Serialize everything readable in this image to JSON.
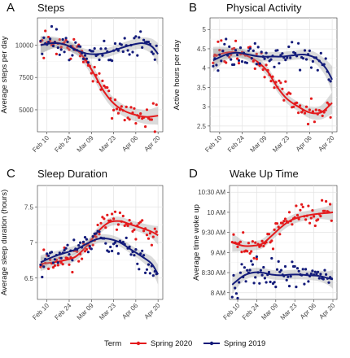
{
  "legend": {
    "title": "Term",
    "entries": [
      {
        "label": "Spring 2020",
        "color": "#E41A1C"
      },
      {
        "label": "Spring 2019",
        "color": "#131B7A"
      }
    ]
  },
  "chart_data": [
    {
      "letter": "A",
      "type": "scatter",
      "title": "Steps",
      "ylabel": "Average steps per day",
      "xticks": [
        "Feb 10",
        "Feb 24",
        "Mar 09",
        "Mar 23",
        "Apr 06",
        "Apr 20"
      ],
      "xlim": [
        "2020-02-04",
        "2020-04-23"
      ],
      "yticks": [
        5000,
        7500,
        10000
      ],
      "ytick_labels": [
        "5000",
        "7500",
        "10000"
      ],
      "ylim": [
        3300,
        12100
      ],
      "series": [
        {
          "name": "Spring 2020",
          "color": "#E41A1C",
          "trend": [
            [
              "2020-02-06",
              10000
            ],
            [
              "2020-02-14",
              10200
            ],
            [
              "2020-02-21",
              10050
            ],
            [
              "2020-02-28",
              9700
            ],
            [
              "2020-03-05",
              8900
            ],
            [
              "2020-03-11",
              7700
            ],
            [
              "2020-03-17",
              6400
            ],
            [
              "2020-03-23",
              5500
            ],
            [
              "2020-03-30",
              4900
            ],
            [
              "2020-04-06",
              4600
            ],
            [
              "2020-04-13",
              4450
            ],
            [
              "2020-04-20",
              4550
            ]
          ],
          "band": [
            700,
            450,
            400,
            400,
            450,
            450,
            450,
            450,
            450,
            500,
            550,
            700
          ]
        },
        {
          "name": "Spring 2019",
          "color": "#131B7A",
          "trend": [
            [
              "2020-02-06",
              10000
            ],
            [
              "2020-02-14",
              10150
            ],
            [
              "2020-02-21",
              10050
            ],
            [
              "2020-02-28",
              9650
            ],
            [
              "2020-03-06",
              9350
            ],
            [
              "2020-03-13",
              9300
            ],
            [
              "2020-03-20",
              9450
            ],
            [
              "2020-03-27",
              9750
            ],
            [
              "2020-04-03",
              10000
            ],
            [
              "2020-04-10",
              10150
            ],
            [
              "2020-04-16",
              9900
            ],
            [
              "2020-04-20",
              9300
            ]
          ],
          "band": [
            650,
            400,
            350,
            350,
            350,
            350,
            350,
            350,
            400,
            450,
            600,
            850
          ]
        }
      ]
    },
    {
      "letter": "B",
      "type": "scatter",
      "title": "Physical Activity",
      "ylabel": "Active hours per day",
      "xticks": [
        "Feb 10",
        "Feb 24",
        "Mar 09",
        "Mar 23",
        "Apr 06",
        "Apr 20"
      ],
      "xlim": [
        "2020-02-04",
        "2020-04-23"
      ],
      "yticks": [
        2.5,
        3,
        3.5,
        4,
        4.5,
        5
      ],
      "ytick_labels": [
        "2.5",
        "3",
        "3.5",
        "4",
        "4.5",
        "5"
      ],
      "ylim": [
        2.35,
        5.3
      ],
      "series": [
        {
          "name": "Spring 2020",
          "color": "#E41A1C",
          "trend": [
            [
              "2020-02-06",
              4.3
            ],
            [
              "2020-02-14",
              4.4
            ],
            [
              "2020-02-21",
              4.4
            ],
            [
              "2020-02-28",
              4.3
            ],
            [
              "2020-03-05",
              4.15
            ],
            [
              "2020-03-11",
              3.9
            ],
            [
              "2020-03-17",
              3.5
            ],
            [
              "2020-03-23",
              3.2
            ],
            [
              "2020-03-30",
              3.0
            ],
            [
              "2020-04-06",
              2.85
            ],
            [
              "2020-04-13",
              2.85
            ],
            [
              "2020-04-20",
              3.1
            ]
          ],
          "band": [
            0.25,
            0.15,
            0.12,
            0.12,
            0.12,
            0.12,
            0.12,
            0.12,
            0.12,
            0.15,
            0.18,
            0.28
          ]
        },
        {
          "name": "Spring 2019",
          "color": "#131B7A",
          "trend": [
            [
              "2020-02-06",
              4.2
            ],
            [
              "2020-02-14",
              4.35
            ],
            [
              "2020-02-21",
              4.4
            ],
            [
              "2020-02-28",
              4.35
            ],
            [
              "2020-03-06",
              4.3
            ],
            [
              "2020-03-13",
              4.3
            ],
            [
              "2020-03-20",
              4.3
            ],
            [
              "2020-03-27",
              4.33
            ],
            [
              "2020-04-03",
              4.35
            ],
            [
              "2020-04-10",
              4.25
            ],
            [
              "2020-04-16",
              4.0
            ],
            [
              "2020-04-20",
              3.7
            ]
          ],
          "band": [
            0.3,
            0.15,
            0.12,
            0.12,
            0.12,
            0.12,
            0.12,
            0.12,
            0.13,
            0.15,
            0.22,
            0.35
          ]
        }
      ]
    },
    {
      "letter": "C",
      "type": "scatter",
      "title": "Sleep Duration",
      "ylabel": "Average sleep duration (hours)",
      "xticks": [
        "Feb 10",
        "Feb 24",
        "Mar 09",
        "Mar 23",
        "Apr 06",
        "Apr 20"
      ],
      "xlim": [
        "2020-02-04",
        "2020-04-23"
      ],
      "yticks": [
        6.5,
        7,
        7.5
      ],
      "ytick_labels": [
        "6.5",
        "7",
        "7.5"
      ],
      "ylim": [
        6.2,
        7.8
      ],
      "series": [
        {
          "name": "Spring 2020",
          "color": "#E41A1C",
          "trend": [
            [
              "2020-02-06",
              6.7
            ],
            [
              "2020-02-14",
              6.72
            ],
            [
              "2020-02-21",
              6.75
            ],
            [
              "2020-02-28",
              6.8
            ],
            [
              "2020-03-06",
              6.95
            ],
            [
              "2020-03-13",
              7.15
            ],
            [
              "2020-03-20",
              7.28
            ],
            [
              "2020-03-27",
              7.3
            ],
            [
              "2020-04-03",
              7.25
            ],
            [
              "2020-04-10",
              7.2
            ],
            [
              "2020-04-16",
              7.15
            ],
            [
              "2020-04-20",
              7.1
            ]
          ],
          "band": [
            0.1,
            0.07,
            0.06,
            0.06,
            0.06,
            0.06,
            0.06,
            0.06,
            0.06,
            0.07,
            0.09,
            0.13
          ]
        },
        {
          "name": "Spring 2019",
          "color": "#131B7A",
          "trend": [
            [
              "2020-02-06",
              6.72
            ],
            [
              "2020-02-14",
              6.8
            ],
            [
              "2020-02-21",
              6.85
            ],
            [
              "2020-02-28",
              6.9
            ],
            [
              "2020-03-06",
              6.98
            ],
            [
              "2020-03-13",
              7.05
            ],
            [
              "2020-03-20",
              7.05
            ],
            [
              "2020-03-27",
              7.0
            ],
            [
              "2020-04-03",
              6.9
            ],
            [
              "2020-04-10",
              6.8
            ],
            [
              "2020-04-16",
              6.7
            ],
            [
              "2020-04-20",
              6.55
            ]
          ],
          "band": [
            0.1,
            0.07,
            0.06,
            0.06,
            0.06,
            0.06,
            0.06,
            0.06,
            0.06,
            0.07,
            0.1,
            0.14
          ]
        }
      ]
    },
    {
      "letter": "D",
      "type": "scatter",
      "title": "Wake Up Time",
      "ylabel": "Average time woke up",
      "xticks": [
        "Feb 10",
        "Feb 24",
        "Mar 09",
        "Mar 23",
        "Apr 06",
        "Apr 20"
      ],
      "xlim": [
        "2020-02-04",
        "2020-04-23"
      ],
      "yticks": [
        480,
        510,
        540,
        570,
        600,
        630
      ],
      "ytick_labels": [
        "8 AM",
        "8:30 AM",
        "9 AM",
        "9:30 AM",
        "10 AM",
        "10:30 AM"
      ],
      "ylim": [
        470,
        640
      ],
      "series": [
        {
          "name": "Spring 2020",
          "color": "#E41A1C",
          "trend": [
            [
              "2020-02-06",
              555
            ],
            [
              "2020-02-14",
              550
            ],
            [
              "2020-02-21",
              550
            ],
            [
              "2020-02-28",
              553
            ],
            [
              "2020-03-06",
              565
            ],
            [
              "2020-03-13",
              578
            ],
            [
              "2020-03-20",
              588
            ],
            [
              "2020-03-27",
              593
            ],
            [
              "2020-04-03",
              596
            ],
            [
              "2020-04-10",
              598
            ],
            [
              "2020-04-16",
              599
            ],
            [
              "2020-04-20",
              600
            ]
          ],
          "band": [
            14,
            8,
            7,
            7,
            7,
            7,
            7,
            7,
            7,
            8,
            10,
            14
          ]
        },
        {
          "name": "Spring 2019",
          "color": "#131B7A",
          "trend": [
            [
              "2020-02-06",
              492
            ],
            [
              "2020-02-14",
              505
            ],
            [
              "2020-02-21",
              510
            ],
            [
              "2020-02-28",
              510
            ],
            [
              "2020-03-06",
              507
            ],
            [
              "2020-03-13",
              506
            ],
            [
              "2020-03-20",
              507
            ],
            [
              "2020-03-27",
              507
            ],
            [
              "2020-04-03",
              506
            ],
            [
              "2020-04-10",
              505
            ],
            [
              "2020-04-16",
              502
            ],
            [
              "2020-04-20",
              500
            ]
          ],
          "band": [
            14,
            8,
            7,
            7,
            7,
            7,
            7,
            7,
            7,
            8,
            10,
            14
          ]
        }
      ]
    }
  ]
}
